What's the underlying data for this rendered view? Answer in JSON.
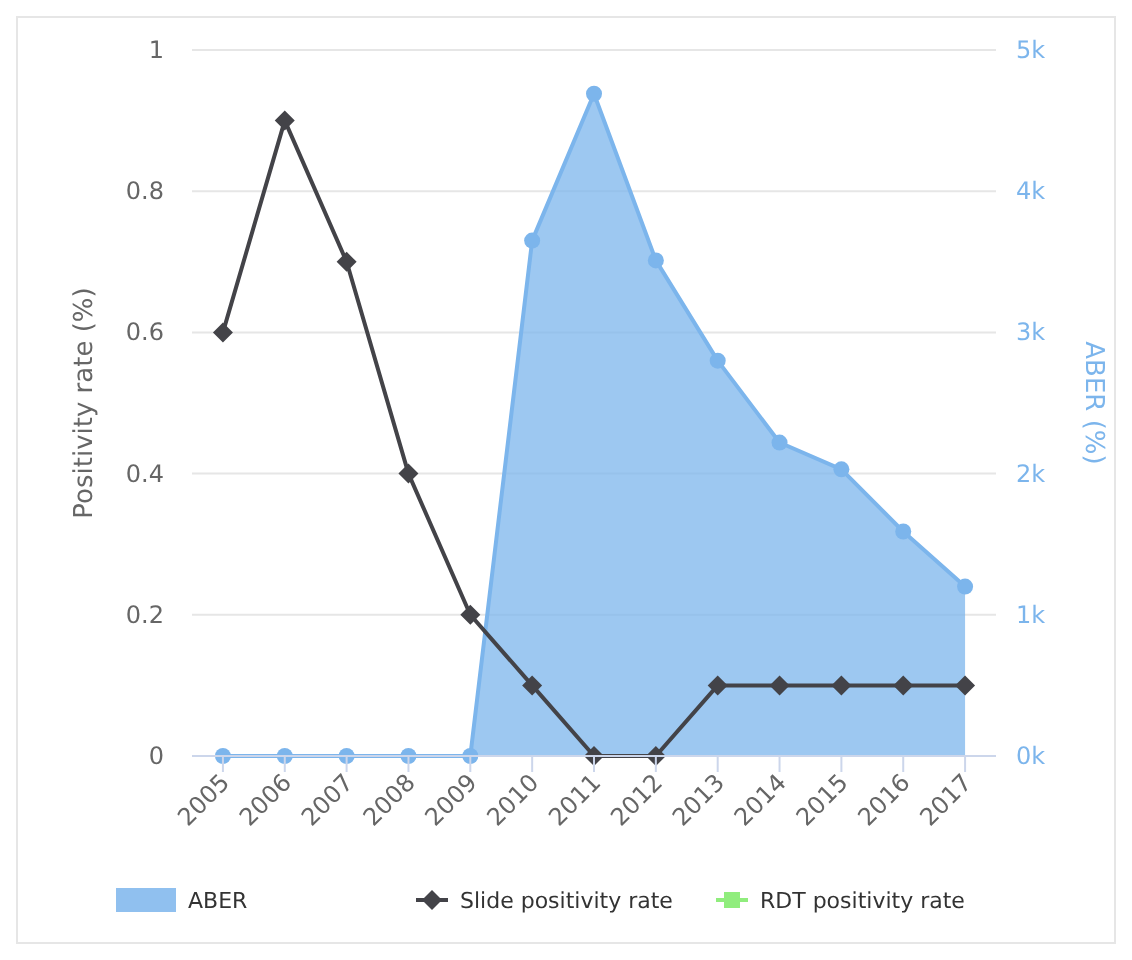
{
  "chart_data": {
    "type": "line",
    "categories": [
      "2005",
      "2006",
      "2007",
      "2008",
      "2009",
      "2010",
      "2011",
      "2012",
      "2013",
      "2014",
      "2015",
      "2016",
      "2017"
    ],
    "ylabel": "Positivity rate (%)",
    "y2label": "ABER (%)",
    "ylim": [
      0,
      1
    ],
    "yticks": [
      0,
      0.2,
      0.4,
      0.6,
      0.8,
      1
    ],
    "y2lim": [
      0,
      5000
    ],
    "y2ticks": [
      {
        "value": 0,
        "label": "0k"
      },
      {
        "value": 1000,
        "label": "1k"
      },
      {
        "value": 2000,
        "label": "2k"
      },
      {
        "value": 3000,
        "label": "3k"
      },
      {
        "value": 4000,
        "label": "4k"
      },
      {
        "value": 5000,
        "label": "5k"
      }
    ],
    "grid": "y",
    "legend": "bottom",
    "series": [
      {
        "name": "ABER",
        "type": "area",
        "axis": "y2",
        "color": "#7cb5ec",
        "marker": "circle",
        "values": [
          0,
          0,
          0,
          0,
          0,
          3650,
          4690,
          3510,
          2800,
          2220,
          2030,
          1590,
          1200
        ]
      },
      {
        "name": "Slide positivity rate",
        "color": "#434348",
        "marker": "diamond",
        "values": [
          0.6,
          0.9,
          0.7,
          0.4,
          0.2,
          0.1,
          0,
          0,
          0.1,
          0.1,
          0.1,
          0.1,
          0.1
        ]
      },
      {
        "name": "RDT positivity rate",
        "color": "#90ed7d",
        "marker": "square",
        "values": [
          null,
          null,
          null,
          null,
          null,
          null,
          null,
          null,
          null,
          null,
          null,
          null,
          null
        ]
      }
    ]
  }
}
